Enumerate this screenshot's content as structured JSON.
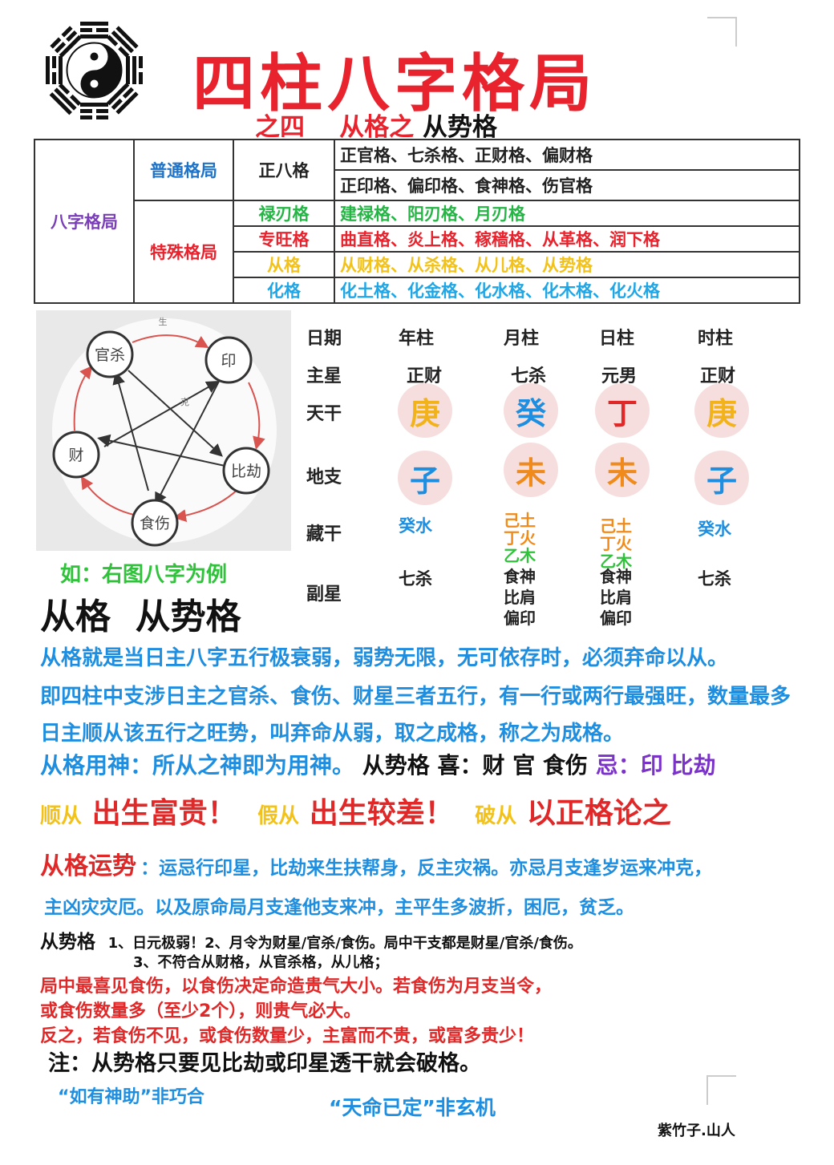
{
  "title": "四柱八字格局",
  "subtitle": {
    "part1": "之四",
    "part2": "从格之",
    "part3": "从势格"
  },
  "table": {
    "category": "八字格局",
    "common": "普通格局",
    "special": "特殊格局",
    "rows": [
      {
        "name": "正八格",
        "items": "正官格、七杀格、正财格、偏财格"
      },
      {
        "items": "正印格、偏印格、食神格、伤官格"
      },
      {
        "name": "禄刃格",
        "items": "建禄格、阳刃格、月刃格"
      },
      {
        "name": "专旺格",
        "items": "曲直格、炎上格、稼穑格、从革格、润下格"
      },
      {
        "name": "从格",
        "items": "从财格、从杀格、从儿格、从势格"
      },
      {
        "name": "化格",
        "items": "化土格、化金格、化水格、化木格、化火格"
      }
    ]
  },
  "wheel": {
    "top_left": "官杀",
    "top_right": "印",
    "right": "比劫",
    "bottom": "食伤",
    "left": "财",
    "sheng": "生",
    "ke": "克"
  },
  "pillars": {
    "labels": {
      "date": "日期",
      "main_star": "主星",
      "tiangan": "天干",
      "dizhi": "地支",
      "canggan": "藏干",
      "fuxing": "副星"
    },
    "heads": [
      "年柱",
      "月柱",
      "日柱",
      "时柱"
    ],
    "main_stars": [
      "正财",
      "七杀",
      "元男",
      "正财"
    ],
    "tiangan": [
      "庚",
      "癸",
      "丁",
      "庚"
    ],
    "dizhi": [
      "子",
      "未",
      "未",
      "子"
    ],
    "canggan": {
      "year": "癸水",
      "month": {
        "a": "己土",
        "b": "丁火",
        "c": "乙木"
      },
      "day": {
        "a": "己土",
        "b": "丁火",
        "c": "乙木"
      },
      "hour": "癸水"
    },
    "fuxing": {
      "year": "七杀",
      "month": [
        "食神",
        "比肩",
        "偏印"
      ],
      "day": [
        "食神",
        "比肩",
        "偏印"
      ],
      "hour": "七杀"
    }
  },
  "example": "如：右图八字为例",
  "heading": "从格  从势格",
  "para": [
    "从格就是当日主八字五行极衰弱，弱势无限，无可依存时，必须弃命以从。",
    "即四柱中支涉日主之官杀、食伤、财星三者五行，有一行或两行最强旺，数量最多",
    "日主顺从该五行之旺势，叫弃命从弱，取之成格，称之为成格。"
  ],
  "yongshen": {
    "a": "从格用神：所从之神即为用神。",
    "b": "从势格 喜：财 官 食伤",
    "c": "忌：印 比劫"
  },
  "outcome": {
    "a": "顺从",
    "a2": "出生富贵！",
    "b": "假从",
    "b2": "出生较差！",
    "c": "破从",
    "c2": "以正格论之"
  },
  "yunshi": {
    "label": "从格运势",
    "line1": "：运忌行印星，比劫来生扶帮身，反主灾祸。亦忌月支逢岁运来冲克，",
    "line2": "主凶灾灾厄。以及原命局月支逢他支来冲，主平生多波折，困厄，贫乏。"
  },
  "rules": {
    "label": "从势格",
    "r1": "1、日元极弱！2、月令为财星/官杀/食伤。局中干支都是财星/官杀/食伤。",
    "r3": "3、不符合从财格，从官杀格，从儿格；"
  },
  "red_notes": [
    "局中最喜见食伤，以食伤决定命造贵气大小。若食伤为月支当令，",
    "或食伤数量多（至少2个），则贵气必大。",
    "反之，若食伤不见，或食伤数量少，主富而不贵，或富多贵少！"
  ],
  "note": "注：从势格只要见比劫或印星透干就会破格。",
  "quote1": "“如有神助”非巧合",
  "quote2": "“天命已定”非玄机",
  "signature": "紫竹子.山人",
  "colors": {
    "red": "#e8232d",
    "blue": "#1e8ee0",
    "purple": "#7a32c8",
    "yellow": "#f2c21a",
    "green": "#2fc23a",
    "orange": "#f08a1a"
  }
}
